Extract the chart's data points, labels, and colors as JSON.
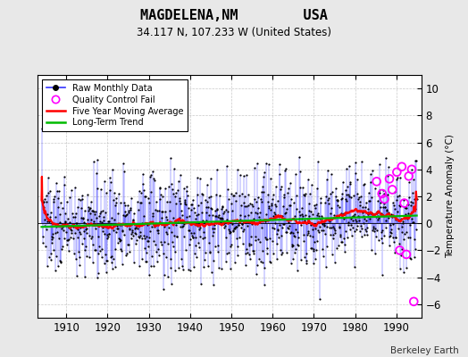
{
  "title": "MAGDELENA,NM        USA",
  "subtitle": "34.117 N, 107.233 W (United States)",
  "ylabel": "Temperature Anomaly (°C)",
  "credit": "Berkeley Earth",
  "year_start": 1904,
  "year_end": 1994,
  "ylim": [
    -7,
    11
  ],
  "yticks": [
    -6,
    -4,
    -2,
    0,
    2,
    4,
    6,
    8,
    10
  ],
  "xticks": [
    1910,
    1920,
    1930,
    1940,
    1950,
    1960,
    1970,
    1980,
    1990
  ],
  "xlim_left": 1903,
  "xlim_right": 1996,
  "background_color": "#e8e8e8",
  "plot_bg_color": "#ffffff",
  "line_color": "#3333ff",
  "moving_avg_color": "#ff0000",
  "trend_color": "#00bb00",
  "qc_color": "#ff00ff",
  "seed": 137
}
